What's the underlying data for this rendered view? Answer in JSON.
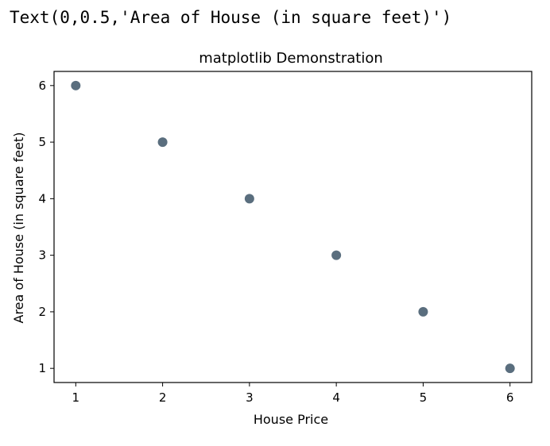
{
  "output_line": "Text(0,0.5,'Area of House (in square feet)')",
  "chart_data": {
    "type": "scatter",
    "title": "matplotlib Demonstration",
    "xlabel": "House Price",
    "ylabel": "Area of House (in square feet)",
    "x": [
      1,
      2,
      3,
      4,
      5,
      6
    ],
    "y": [
      6,
      5,
      4,
      3,
      2,
      1
    ],
    "xticks": [
      1,
      2,
      3,
      4,
      5,
      6
    ],
    "yticks": [
      1,
      2,
      3,
      4,
      5,
      6
    ],
    "xlim": [
      0.75,
      6.25
    ],
    "ylim": [
      0.75,
      6.25
    ],
    "grid": false,
    "marker_color": "#5a6e7e"
  }
}
